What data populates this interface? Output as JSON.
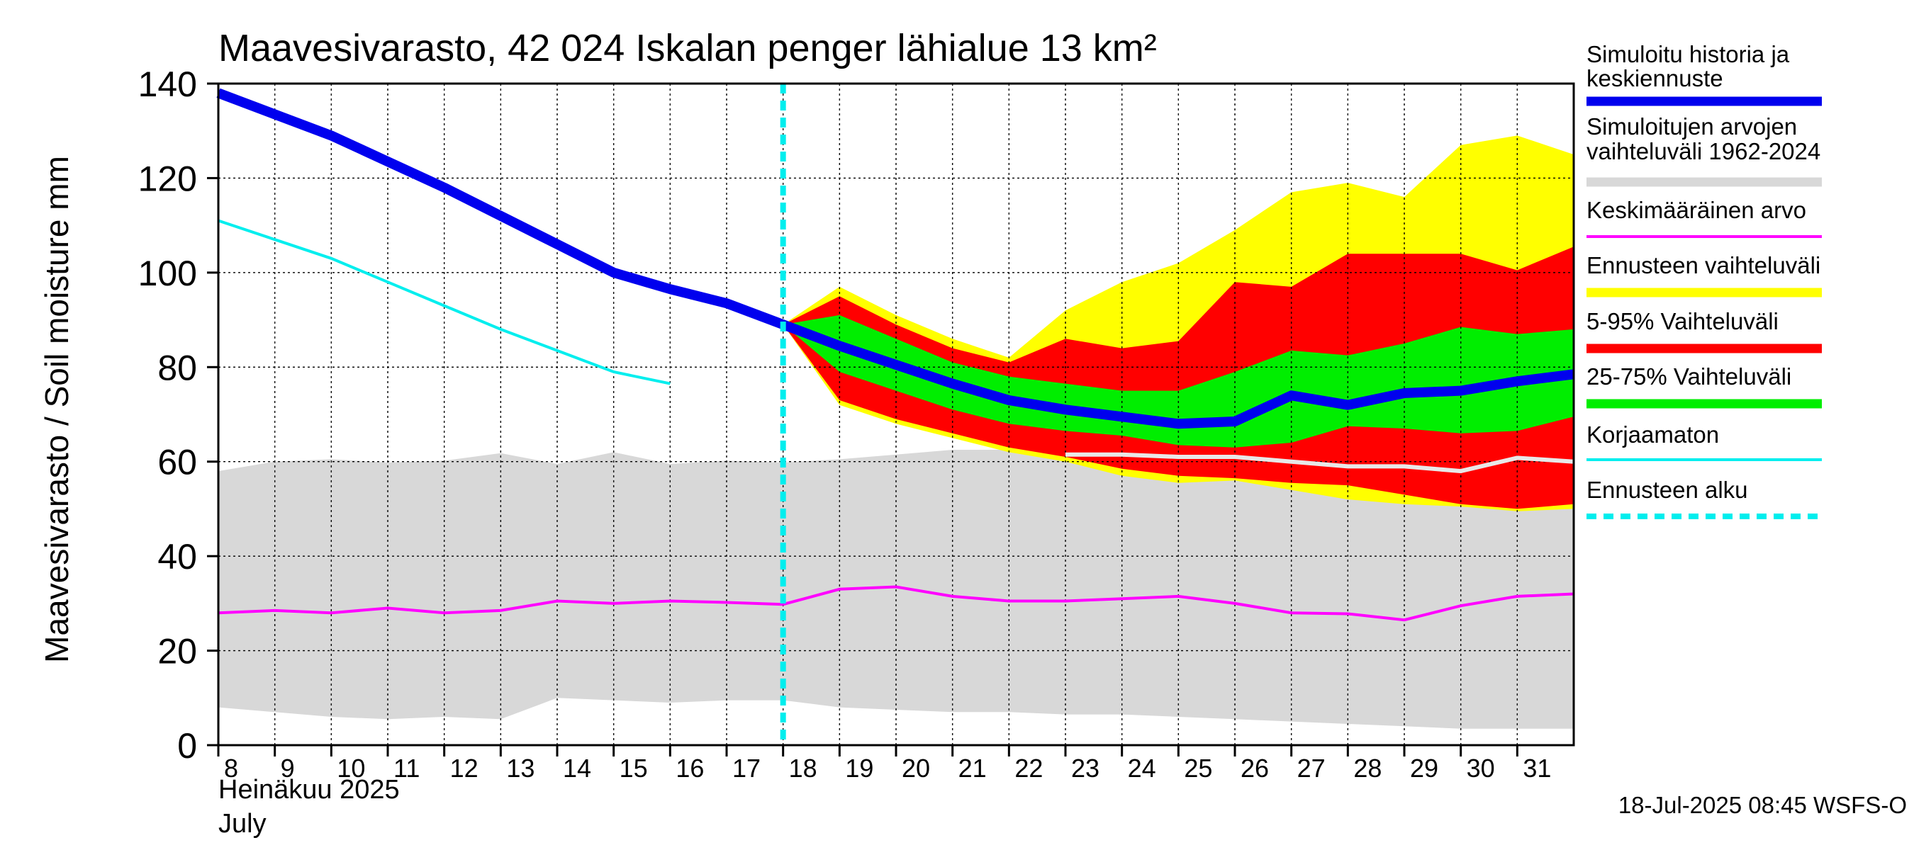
{
  "chart_data": {
    "type": "area",
    "title": "Maavesivarasto, 42 024 Iskalan penger lähialue 13 km²",
    "ylabel": "Maavesivarasto / Soil moisture   mm",
    "xlabel_month": "Heinäkuu  2025",
    "xlabel_month_en": "July",
    "footer": "18-Jul-2025 08:45 WSFS-O",
    "ylim": [
      0,
      140
    ],
    "yticks": [
      0,
      20,
      40,
      60,
      80,
      100,
      120,
      140
    ],
    "xlim": [
      8,
      32
    ],
    "xticks": [
      8,
      9,
      10,
      11,
      12,
      13,
      14,
      15,
      16,
      17,
      18,
      19,
      20,
      21,
      22,
      23,
      24,
      25,
      26,
      27,
      28,
      29,
      30,
      31
    ],
    "grid": true,
    "legend_position": "right",
    "forecast_start": 18,
    "legend": [
      {
        "label": "Simuloitu historia ja keskiennuste",
        "color": "#0000ee",
        "style": "thick"
      },
      {
        "label": "Simuloitujen arvojen vaihteluväli 1962-2024",
        "color": "#d8d8d8",
        "style": "band"
      },
      {
        "label": "Keskimääräinen arvo",
        "color": "#ff00ff",
        "style": "line"
      },
      {
        "label": "Ennusteen vaihteluväli",
        "color": "#ffff00",
        "style": "band"
      },
      {
        "label": "5-95% Vaihteluväli",
        "color": "#ff0000",
        "style": "band"
      },
      {
        "label": "25-75% Vaihteluväli",
        "color": "#00ee00",
        "style": "band"
      },
      {
        "label": "Korjaamaton",
        "color": "#00eeee",
        "style": "line"
      },
      {
        "label": "Ennusteen alku",
        "color": "#00eeee",
        "style": "dashed"
      }
    ],
    "colors": {
      "history_band": "#d8d8d8",
      "history_median": "#e8e8e8",
      "mean": "#ff00ff",
      "forecast_range": "#ffff00",
      "p5_95": "#ff0000",
      "p25_75": "#00ee00",
      "main": "#0000ee",
      "uncorrected": "#00eeee",
      "forecast_start": "#00eeee"
    },
    "series": {
      "history_band": {
        "x": [
          8,
          9,
          10,
          11,
          12,
          13,
          14,
          15,
          16,
          17,
          18,
          19,
          20,
          21,
          22,
          23,
          24,
          25,
          26,
          27,
          28,
          29,
          30,
          31,
          32
        ],
        "upper": [
          58,
          60,
          60.5,
          59.8,
          60.2,
          61.8,
          59.5,
          62,
          59.5,
          60.2,
          59.8,
          60.5,
          61.5,
          62.5,
          62.5,
          62,
          62,
          61.5,
          61,
          60.5,
          60,
          60,
          59.5,
          59.8,
          60
        ],
        "lower": [
          8,
          7,
          6,
          5.5,
          6,
          5.5,
          10,
          9.5,
          9,
          9.5,
          9.5,
          8,
          7.5,
          7,
          7,
          6.5,
          6.5,
          6,
          5.5,
          5,
          4.5,
          4,
          3.5,
          3.5,
          3.5
        ]
      },
      "history_median": {
        "x": [
          23,
          24,
          25,
          26,
          27,
          28,
          29,
          30,
          31,
          32
        ],
        "values": [
          61.5,
          61.5,
          61,
          61,
          60,
          59,
          59,
          58,
          60.8,
          60
        ]
      },
      "mean": {
        "x": [
          8,
          9,
          10,
          11,
          12,
          13,
          14,
          15,
          16,
          17,
          18,
          19,
          20,
          21,
          22,
          23,
          24,
          25,
          26,
          27,
          28,
          29,
          30,
          31,
          32
        ],
        "values": [
          28,
          28.5,
          28,
          29,
          28,
          28.5,
          30.5,
          30,
          30.5,
          30.2,
          29.8,
          33,
          33.5,
          31.5,
          30.5,
          30.5,
          31,
          31.5,
          30,
          28,
          27.8,
          26.5,
          29.5,
          31.5,
          32
        ]
      },
      "forecast_range": {
        "x": [
          18,
          19,
          20,
          21,
          22,
          23,
          24,
          25,
          26,
          27,
          28,
          29,
          30,
          31,
          32
        ],
        "upper": [
          89,
          97,
          91,
          86,
          82,
          92,
          98,
          102,
          109,
          117,
          119,
          116,
          127,
          129,
          125
        ],
        "lower": [
          89,
          72,
          68,
          65,
          62,
          60,
          57,
          55.5,
          56,
          54,
          52,
          51,
          50.5,
          49.5,
          50
        ]
      },
      "p5_95": {
        "x": [
          18,
          19,
          20,
          21,
          22,
          23,
          24,
          25,
          26,
          27,
          28,
          29,
          30,
          31,
          32
        ],
        "upper": [
          89,
          95,
          89,
          84,
          81,
          86,
          84,
          85.5,
          98,
          97,
          104,
          104,
          104,
          100.5,
          105.5
        ],
        "lower": [
          89,
          73,
          69,
          66,
          63,
          61,
          58.5,
          57,
          56.5,
          55.5,
          55,
          53,
          51,
          50,
          51
        ]
      },
      "p25_75": {
        "x": [
          18,
          19,
          20,
          21,
          22,
          23,
          24,
          25,
          26,
          27,
          28,
          29,
          30,
          31,
          32
        ],
        "upper": [
          89,
          91,
          86,
          81,
          78,
          76.5,
          75,
          75,
          79,
          83.5,
          82.5,
          85,
          88.5,
          87,
          88
        ],
        "lower": [
          89,
          79,
          75,
          71,
          68,
          66.5,
          65.5,
          63.5,
          63,
          64,
          67.5,
          67,
          66,
          66.5,
          69.5
        ]
      },
      "main": {
        "x": [
          8,
          9,
          10,
          11,
          12,
          13,
          14,
          15,
          16,
          17,
          18,
          19,
          20,
          21,
          22,
          23,
          24,
          25,
          26,
          27,
          28,
          29,
          30,
          31,
          32
        ],
        "values": [
          138,
          133.5,
          129,
          123.5,
          118,
          112,
          106,
          100,
          96.5,
          93.5,
          89,
          84.5,
          80.5,
          76.5,
          73,
          71,
          69.5,
          68,
          68.5,
          74,
          72,
          74.5,
          75,
          77,
          78.5
        ]
      },
      "uncorrected": {
        "x": [
          8,
          9,
          10,
          11,
          12,
          13,
          14,
          15,
          16
        ],
        "values": [
          111,
          107,
          103,
          98,
          93,
          88,
          83.5,
          79,
          76.5
        ]
      }
    }
  }
}
